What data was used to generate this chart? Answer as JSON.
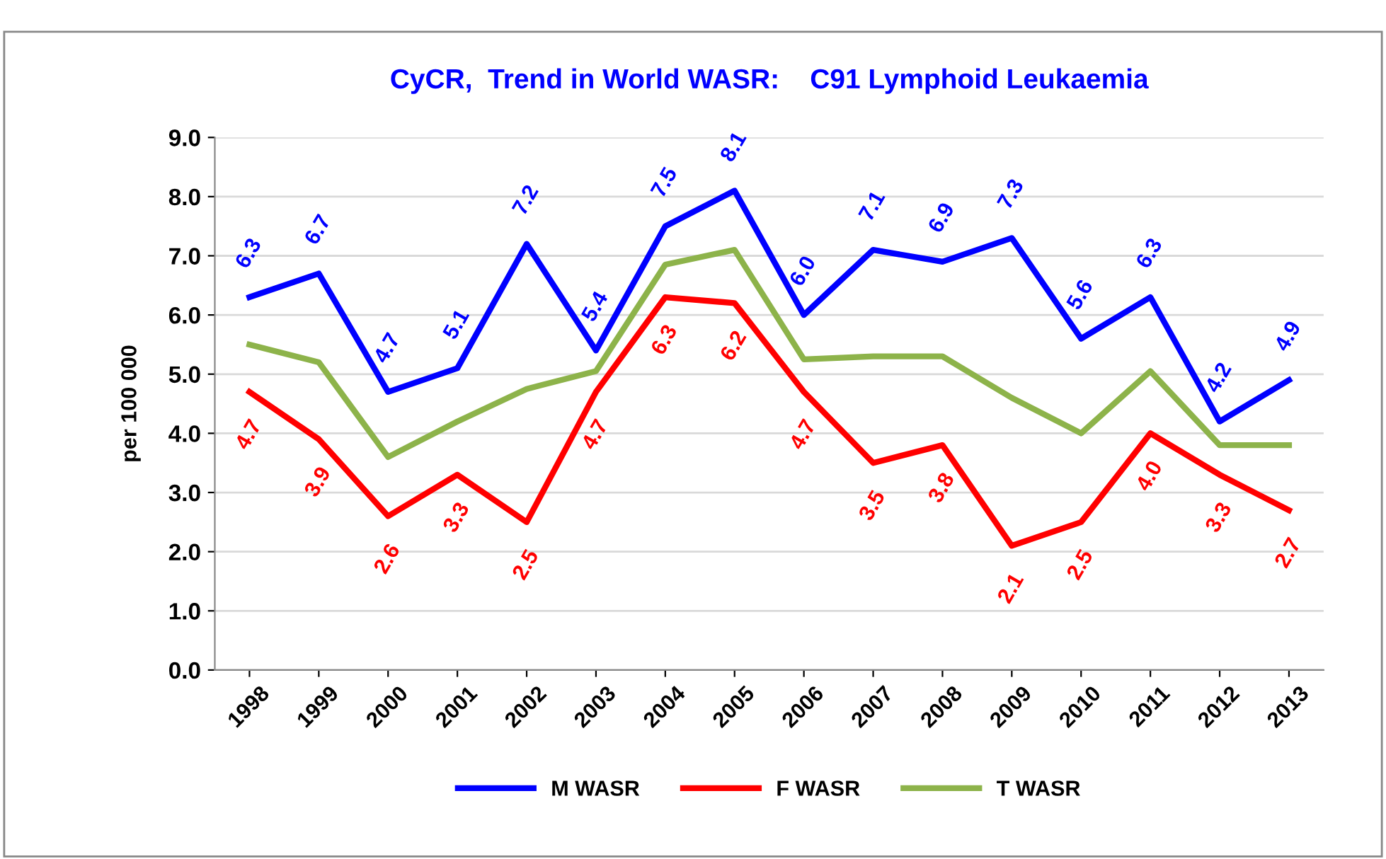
{
  "chart_data": {
    "type": "line",
    "title": "CyCR,  Trend in World WASR:    C91 Lymphoid Leukaemia",
    "ylabel": "per 100 000",
    "categories": [
      "1998",
      "1999",
      "2000",
      "2001",
      "2002",
      "2003",
      "2004",
      "2005",
      "2006",
      "2007",
      "2008",
      "2009",
      "2010",
      "2011",
      "2012",
      "2013"
    ],
    "series": [
      {
        "name": "M WASR",
        "color": "#0000ff",
        "values": [
          6.3,
          6.7,
          4.7,
          5.1,
          7.2,
          5.4,
          7.5,
          8.1,
          6.0,
          7.1,
          6.9,
          7.3,
          5.6,
          6.3,
          4.2,
          4.9
        ],
        "value_labels": [
          "6.3",
          "6.7",
          "4.7",
          "5.1",
          "7.2",
          "5.4",
          "7.5",
          "8.1",
          "6.0",
          "7.1",
          "6.9",
          "7.3",
          "5.6",
          "6.3",
          "4.2",
          "4.9"
        ]
      },
      {
        "name": "F WASR",
        "color": "#ff0000",
        "values": [
          4.7,
          3.9,
          2.6,
          3.3,
          2.5,
          4.7,
          6.3,
          6.2,
          4.7,
          3.5,
          3.8,
          2.1,
          2.5,
          4.0,
          3.3,
          2.7
        ],
        "value_labels": [
          "4.7",
          "3.9",
          "2.6",
          "3.3",
          "2.5",
          "4.7",
          "6.3",
          "6.2",
          "4.7",
          "3.5",
          "3.8",
          "2.1",
          "2.5",
          "4.0",
          "3.3",
          "2.7"
        ]
      },
      {
        "name": "T WASR",
        "color": "#8db34a",
        "values": [
          5.5,
          5.2,
          3.6,
          4.2,
          4.75,
          5.05,
          6.85,
          7.1,
          5.25,
          5.3,
          5.3,
          4.6,
          4.0,
          5.05,
          3.8,
          3.8
        ]
      }
    ],
    "ylim": [
      0,
      9
    ],
    "yticks": [
      {
        "value": 0,
        "label": "0.0"
      },
      {
        "value": 1,
        "label": "1.0"
      },
      {
        "value": 2,
        "label": "2.0"
      },
      {
        "value": 3,
        "label": "3.0"
      },
      {
        "value": 4,
        "label": "4.0"
      },
      {
        "value": 5,
        "label": "5.0"
      },
      {
        "value": 6,
        "label": "6.0"
      },
      {
        "value": 7,
        "label": "7.0"
      },
      {
        "value": 8,
        "label": "8.0"
      },
      {
        "value": 9,
        "label": "9.0"
      }
    ],
    "grid": "y",
    "legend": "bottom",
    "marker": "none",
    "line_style": "solid"
  }
}
